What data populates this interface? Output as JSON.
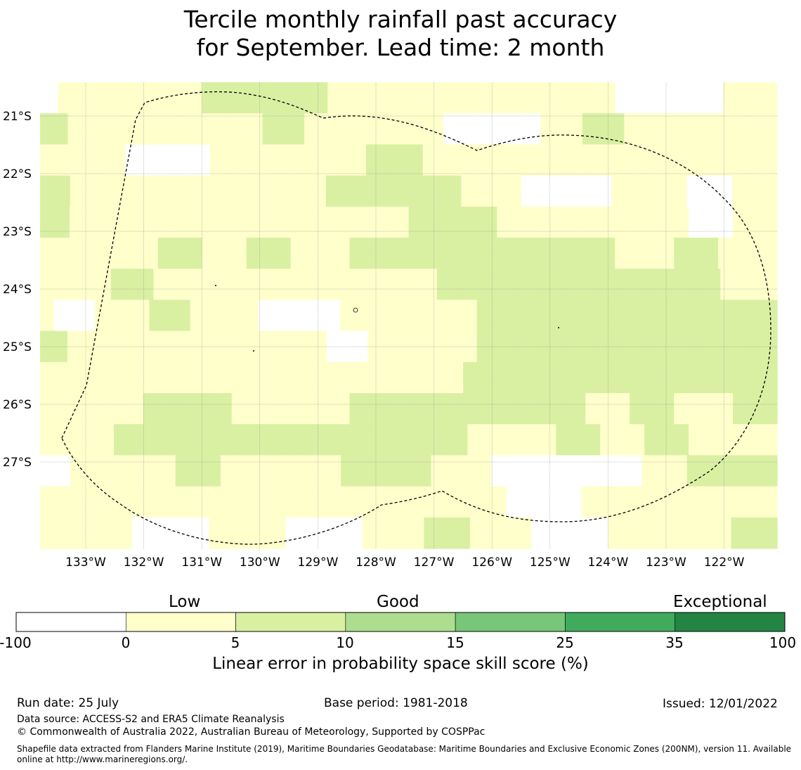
{
  "title": {
    "line1": "Tercile monthly rainfall past accuracy",
    "line2": "for September. Lead time: 2 month"
  },
  "map": {
    "lat_labels": [
      "21°S",
      "22°S",
      "23°S",
      "24°S",
      "25°S",
      "26°S",
      "27°S"
    ],
    "lat_values": [
      -21,
      -22,
      -23,
      -24,
      -25,
      -26,
      -27
    ],
    "lon_labels": [
      "133°W",
      "132°W",
      "131°W",
      "130°W",
      "129°W",
      "128°W",
      "127°W",
      "126°W",
      "125°W",
      "124°W",
      "123°W",
      "122°W"
    ],
    "lon_values": [
      -133,
      -132,
      -131,
      -130,
      -129,
      -128,
      -127,
      -126,
      -125,
      -124,
      -123,
      -122
    ],
    "class_colors": {
      "W": "#ffffff",
      "Y": "#ffffcc",
      "G": "#d9f0a3"
    },
    "grid_rows": [
      "WYYYYYYYYGGGGGGGYYYYYYYYYYYYYYYYWWWWWWYYY",
      "GGYYYYYYYYYYYYYYGGGYYYYYYYYYYWWWWWWWYYYGGGYYYYYYYYYYY",
      "YYYYYYWWWWWWYYYYYYYYYYYGGGGYYYYYYYYYYYYYYYYYYYYYYYYY",
      "GGYYYYYYYYYYYYYYYYYGGGGGGGGGYYYYWWWWWWYYYYYWWWYYY",
      "GGYYYYYYYYYYYYYYYYYYYYYYYGGGGGGYYYYYYYYYYYYYWWWYYY",
      "YYYYYYYYGGGYYYGGGYYYYGGGGGGGGGGGGGGGGGGYYYYGGGYYYY",
      "YYYYYGGGYYYYYYYYYYYYYYYYYYYYGGGGGGGGGGGGGGGGGGGGYYYY",
      "YWWWYYYYGGGYYYYYWWWWWWYYYYYYYYYYGGGGGGGGGGGGGGGGGGGGGG",
      "GGYYYYYYYYYYYYYYYYYYYWWWYYYYYYYYGGGGGGGGGGGGGGGGGGGGGG",
      "YYYYYYYYYYYYYYYYYYYYYYYYYYYYYYYGGGGGGGGGGGGGGGGGGGGGGG",
      "YYYYYYYGGGGGGYYYYYYYYGGGGGGGGGGGGGGGGYYYGGGYYYYGGG",
      "YYYYYGGGGGGGGGGGGGGGGGGGGGGGGYYYYYYGGGYYYGGGYYYYYY",
      "WWYYYYYYYGGGYYYYYYYYGGGGGGYYYYWWWWWWWWWWYYYGGGGGG",
      "YYYYYYYYYYYYYYYYYYYYYYYYYYYYYYYWWWWWYYYYYYYYYYYYY",
      "YYYYYYWWWWWYYYYYWWWWWYYYYGGGYYYYWWWWWYYYYYYYYGGG"
    ]
  },
  "colorbar": {
    "categories": [
      "Low",
      "Good",
      "Exceptional"
    ],
    "tick_labels": [
      "-100",
      "0",
      "5",
      "10",
      "15",
      "25",
      "35",
      "100"
    ],
    "colors": [
      "#ffffff",
      "#ffffcc",
      "#d9f0a3",
      "#addd8e",
      "#78c679",
      "#41ab5d",
      "#238443"
    ],
    "label": "Linear error in probability space skill score (%)"
  },
  "footer": {
    "run_date": "Run date: 25 July",
    "base_period": "Base period: 1981-2018",
    "issued": "Issued: 12/01/2022",
    "data_source": "Data source: ACCESS-S2 and ERA5 Climate Reanalysis",
    "copyright": "© Commonwealth of Australia 2022, Australian Bureau of Meteorology, Supported by COSPPac",
    "shapefile_note": "Shapefile data extracted from Flanders Marine Institute (2019), Maritime Boundaries Geodatabase: Maritime Boundaries and Exclusive Economic Zones (200NM), version 11. Available online at http://www.marineregions.org/."
  }
}
